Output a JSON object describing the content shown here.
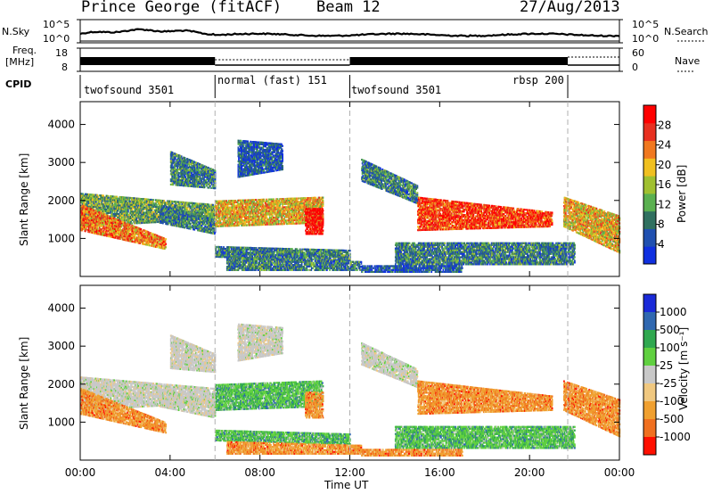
{
  "header": {
    "station": "Prince George (fitACF)",
    "beam": "Beam 12",
    "date": "27/Aug/2013"
  },
  "top_panels": {
    "nsky_label": "N.Sky",
    "nsky_ticks": [
      "10^5",
      "10^0"
    ],
    "nsearch_label": "N.Search",
    "nsearch_ticks": [
      "10^5",
      "10^0"
    ],
    "freq_label_1": "Freq.",
    "freq_label_2": "[MHz]",
    "freq_ticks": [
      "18",
      "8"
    ],
    "nave_label": "Nave",
    "nave_ticks": [
      "60",
      "0"
    ],
    "cpid_label": "CPID"
  },
  "cpid_segments": [
    {
      "label": "twofsound 3501",
      "start": 0.0
    },
    {
      "label": "normal (fast) 151",
      "start": 6.0
    },
    {
      "label": "twofsound 3501",
      "start": 12.0
    },
    {
      "label": "rbsp 200",
      "start": 21.7
    }
  ],
  "colors": {
    "scatter_gray": "#a0a0a0",
    "ground_velocity": "#c0c0c0",
    "power_scale": [
      "#1030e0",
      "#2050b0",
      "#307060",
      "#5ab050",
      "#a0c030",
      "#f0c020",
      "#f07820",
      "#e83020",
      "#ff0000"
    ],
    "velocity_scale": [
      "#1a2ad8",
      "#3068b0",
      "#30a850",
      "#60d040",
      "#c8c8c8",
      "#f0c880",
      "#f0a030",
      "#f07020",
      "#ff1000"
    ]
  },
  "chart_data": [
    {
      "type": "heatmap",
      "name": "power",
      "xlabel": "",
      "ylabel": "Slant Range [km]",
      "x_range_hours": [
        0,
        24
      ],
      "ylim": [
        0,
        4600
      ],
      "y_ticks": [
        "1000",
        "2000",
        "3000",
        "4000"
      ],
      "colorbar_label": "Power [dB]",
      "colorbar_ticks": [
        "4",
        "8",
        "12",
        "16",
        "20",
        "24",
        "28"
      ],
      "colorbar_range": [
        0,
        32
      ]
    },
    {
      "type": "heatmap",
      "name": "velocity",
      "xlabel": "Time UT",
      "ylabel": "Slant Range [km]",
      "x_range_hours": [
        0,
        24
      ],
      "ylim": [
        0,
        4600
      ],
      "x_ticks": [
        "00:00",
        "04:00",
        "08:00",
        "12:00",
        "16:00",
        "20:00",
        "00:00"
      ],
      "y_ticks": [
        "1000",
        "2000",
        "3000",
        "4000"
      ],
      "colorbar_label": "Velocity [m s⁻¹]",
      "colorbar_ticks": [
        "1000",
        "500",
        "100",
        "25",
        "-25",
        "-100",
        "-500",
        "-1000"
      ]
    }
  ]
}
